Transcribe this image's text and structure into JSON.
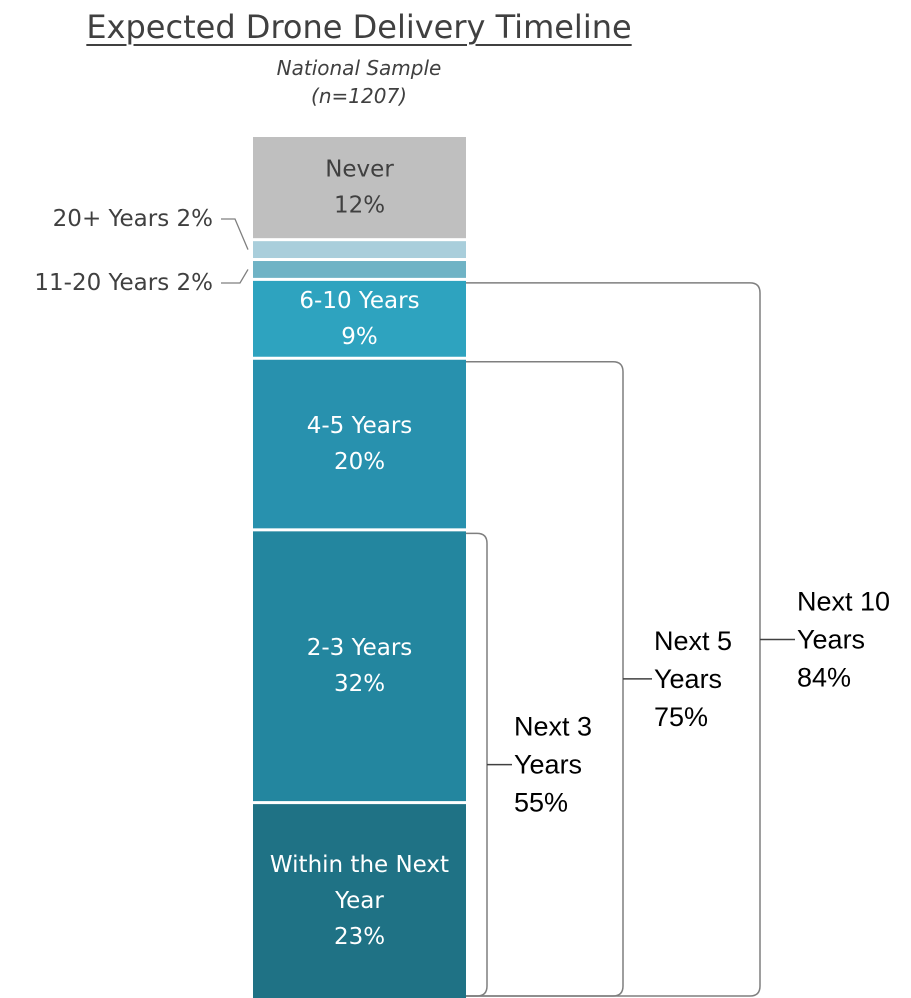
{
  "chart_data": {
    "type": "bar",
    "stacked": true,
    "orientation": "vertical",
    "title": "Expected Drone Delivery Timeline",
    "subtitle": [
      "National Sample",
      "(n=1207)"
    ],
    "series": [
      {
        "name": "Never",
        "label_lines": [
          "Never"
        ],
        "value": 12,
        "value_label": "12%",
        "color": "#bfbfbf",
        "text_color": "#404040"
      },
      {
        "name": "20+ Years",
        "label_lines": [
          "20+ Years 2%"
        ],
        "value": 2,
        "value_label": "2%",
        "color": "#a9cedb",
        "external": true
      },
      {
        "name": "11-20 Years",
        "label_lines": [
          "11-20 Years 2%"
        ],
        "value": 2,
        "value_label": "2%",
        "color": "#6fb3c5",
        "external": true
      },
      {
        "name": "6-10 Years",
        "label_lines": [
          "6-10 Years"
        ],
        "value": 9,
        "value_label": "9%",
        "color": "#2ea3bf",
        "text_color": "#ffffff"
      },
      {
        "name": "4-5 Years",
        "label_lines": [
          "4-5 Years"
        ],
        "value": 20,
        "value_label": "20%",
        "color": "#2891ae",
        "text_color": "#ffffff"
      },
      {
        "name": "2-3 Years",
        "label_lines": [
          "2-3 Years"
        ],
        "value": 32,
        "value_label": "32%",
        "color": "#23869f",
        "text_color": "#ffffff"
      },
      {
        "name": "Within the Next Year",
        "label_lines": [
          "Within the Next",
          "Year"
        ],
        "value": 23,
        "value_label": "23%",
        "color": "#1f7285",
        "text_color": "#ffffff"
      }
    ],
    "annotations": [
      {
        "id": "next-3-years",
        "lines": [
          "Next 3",
          "Years",
          "55%"
        ],
        "value": 55,
        "spans_from": "2-3 Years"
      },
      {
        "id": "next-5-years",
        "lines": [
          "Next 5",
          "Years",
          "75%"
        ],
        "value": 75,
        "spans_from": "4-5 Years"
      },
      {
        "id": "next-10-years",
        "lines": [
          "Next 10",
          "Years",
          "84%"
        ],
        "value": 84,
        "spans_from": "6-10 Years"
      }
    ]
  }
}
